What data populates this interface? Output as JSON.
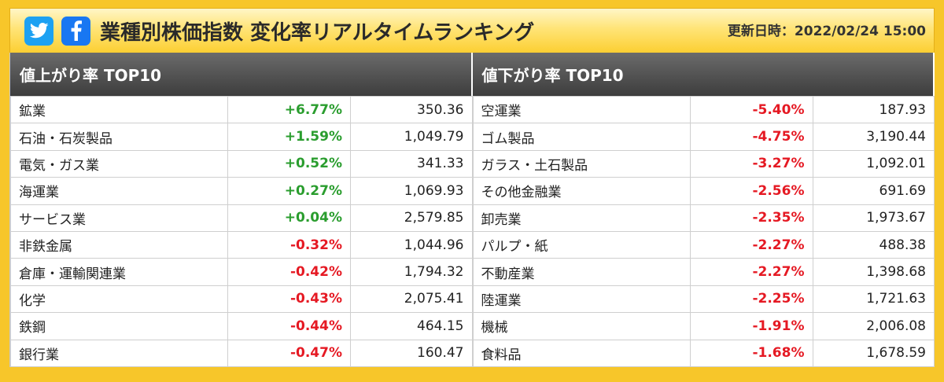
{
  "header": {
    "title": "業種別株価指数 変化率リアルタイムランキング",
    "updated": "更新日時：2022/02/24 15:00",
    "share": [
      {
        "service": "twitter",
        "icon": "twitter-bird-icon",
        "color": "#1da1f2"
      },
      {
        "service": "facebook",
        "icon": "facebook-f-icon",
        "color": "#1877f2"
      }
    ]
  },
  "colors": {
    "frame": "#f7c62a",
    "panel_header": "#4a4a4a",
    "positive": "#2a9d2e",
    "negative": "#e51923"
  },
  "gainers": {
    "title": "値上がり率 TOP10",
    "rows": [
      {
        "name": "鉱業",
        "rate": "+6.77%",
        "price": "350.36",
        "dir": "pos"
      },
      {
        "name": "石油・石炭製品",
        "rate": "+1.59%",
        "price": "1,049.79",
        "dir": "pos"
      },
      {
        "name": "電気・ガス業",
        "rate": "+0.52%",
        "price": "341.33",
        "dir": "pos"
      },
      {
        "name": "海運業",
        "rate": "+0.27%",
        "price": "1,069.93",
        "dir": "pos"
      },
      {
        "name": "サービス業",
        "rate": "+0.04%",
        "price": "2,579.85",
        "dir": "pos"
      },
      {
        "name": "非鉄金属",
        "rate": "-0.32%",
        "price": "1,044.96",
        "dir": "neg"
      },
      {
        "name": "倉庫・運輸関連業",
        "rate": "-0.42%",
        "price": "1,794.32",
        "dir": "neg"
      },
      {
        "name": "化学",
        "rate": "-0.43%",
        "price": "2,075.41",
        "dir": "neg"
      },
      {
        "name": "鉄鋼",
        "rate": "-0.44%",
        "price": "464.15",
        "dir": "neg"
      },
      {
        "name": "銀行業",
        "rate": "-0.47%",
        "price": "160.47",
        "dir": "neg"
      }
    ]
  },
  "losers": {
    "title": "値下がり率 TOP10",
    "rows": [
      {
        "name": "空運業",
        "rate": "-5.40%",
        "price": "187.93",
        "dir": "neg"
      },
      {
        "name": "ゴム製品",
        "rate": "-4.75%",
        "price": "3,190.44",
        "dir": "neg"
      },
      {
        "name": "ガラス・土石製品",
        "rate": "-3.27%",
        "price": "1,092.01",
        "dir": "neg"
      },
      {
        "name": "その他金融業",
        "rate": "-2.56%",
        "price": "691.69",
        "dir": "neg"
      },
      {
        "name": "卸売業",
        "rate": "-2.35%",
        "price": "1,973.67",
        "dir": "neg"
      },
      {
        "name": "パルプ・紙",
        "rate": "-2.27%",
        "price": "488.38",
        "dir": "neg"
      },
      {
        "name": "不動産業",
        "rate": "-2.27%",
        "price": "1,398.68",
        "dir": "neg"
      },
      {
        "name": "陸運業",
        "rate": "-2.25%",
        "price": "1,721.63",
        "dir": "neg"
      },
      {
        "name": "機械",
        "rate": "-1.91%",
        "price": "2,006.08",
        "dir": "neg"
      },
      {
        "name": "食料品",
        "rate": "-1.68%",
        "price": "1,678.59",
        "dir": "neg"
      }
    ]
  }
}
